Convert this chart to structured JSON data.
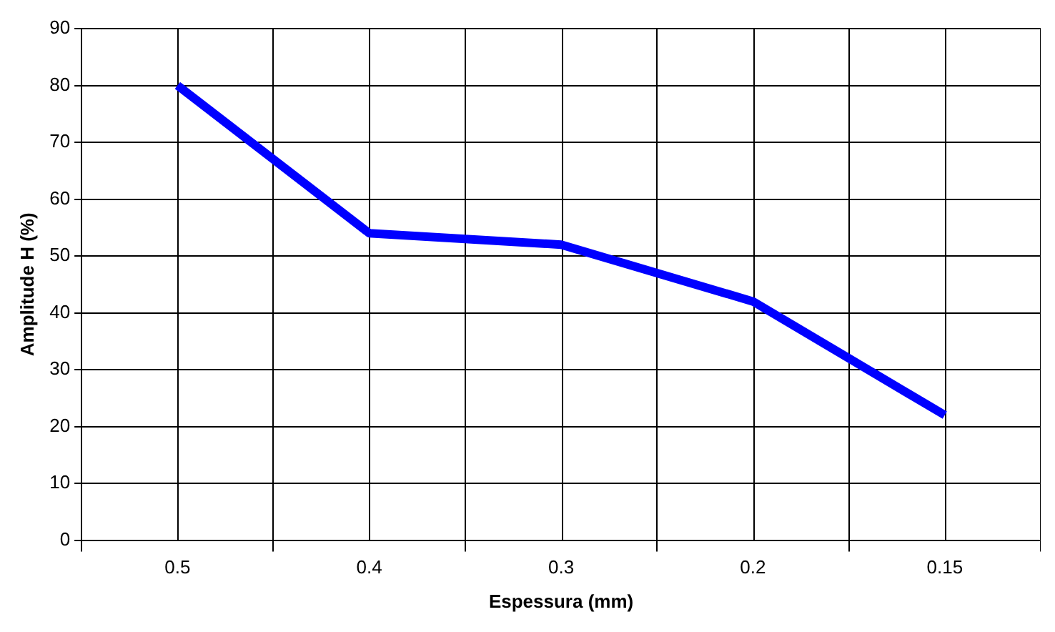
{
  "chart_data": {
    "type": "line",
    "xlabel": "Espessura (mm)",
    "ylabel": "Amplitude H (%)",
    "categories": [
      "0.5",
      "0.4",
      "0.3",
      "0.2",
      "0.15"
    ],
    "series": [
      {
        "color": "#0000ff",
        "values": [
          80,
          54,
          52,
          42,
          22
        ]
      }
    ],
    "ylim": [
      0,
      90
    ],
    "yticks": [
      0,
      10,
      20,
      30,
      40,
      50,
      60,
      70,
      80,
      90
    ],
    "grid": true,
    "legend": false,
    "marker": "none",
    "line_style": "solid"
  }
}
